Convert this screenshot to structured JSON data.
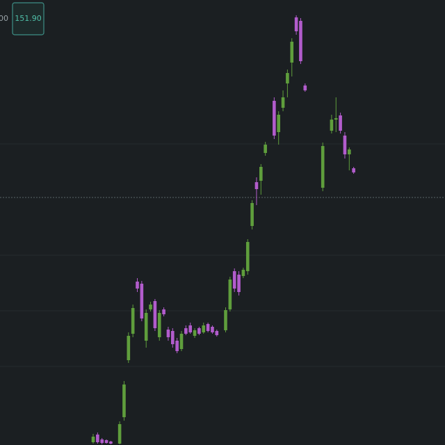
{
  "chart_data": {
    "type": "candlestick",
    "annotations": [
      "00",
      "151.90"
    ],
    "categories": [
      null,
      null,
      null,
      null,
      null,
      null,
      null,
      null,
      null,
      null,
      null,
      null,
      null,
      null,
      null,
      null,
      null,
      null,
      null,
      null,
      null,
      null,
      null,
      null,
      null,
      null,
      null,
      null,
      null,
      null,
      null,
      null,
      null,
      null,
      null,
      null,
      null,
      null,
      null,
      null,
      null,
      null,
      null,
      null,
      null,
      null,
      null,
      null,
      null,
      null,
      null,
      null,
      null,
      null,
      null,
      null,
      null,
      null,
      null,
      null
    ],
    "open": [
      139.72,
      139.94,
      139.8,
      139.78,
      139.74,
      null,
      139.68,
      140.44,
      142.08,
      142.84,
      144.34,
      144.28,
      142.64,
      143.54,
      143.78,
      142.74,
      143.54,
      142.96,
      142.92,
      142.64,
      142.4,
      143.0,
      143.08,
      142.78,
      143.0,
      142.88,
      143.12,
      143.04,
      142.92,
      null,
      142.94,
      143.54,
      144.64,
      144.54,
      144.5,
      144.64,
      145.94,
      147.2,
      147.24,
      148.04,
      null,
      149.54,
      148.64,
      149.34,
      150.04,
      150.64,
      151.94,
      151.84,
      149.98,
      null,
      null,
      null,
      147.04,
      null,
      148.68,
      149.0,
      149.12,
      148.54,
      148.0,
      147.6
    ],
    "high": [
      139.96,
      140.0,
      139.84,
      139.8,
      139.76,
      null,
      140.32,
      141.48,
      142.88,
      143.68,
      144.44,
      144.36,
      143.54,
      143.76,
      143.84,
      143.52,
      143.6,
      143.04,
      143.0,
      142.72,
      142.92,
      143.08,
      143.16,
      143.0,
      143.04,
      143.16,
      143.16,
      143.08,
      142.96,
      null,
      143.6,
      144.48,
      144.72,
      144.64,
      144.74,
      145.56,
      146.68,
      147.34,
      147.72,
      148.36,
      null,
      149.64,
      149.24,
      149.84,
      150.44,
      151.34,
      152.0,
      151.92,
      150.04,
      null,
      null,
      null,
      148.34,
      null,
      149.14,
      149.64,
      149.2,
      148.64,
      148.2,
      147.64
    ],
    "low": [
      139.68,
      139.68,
      139.66,
      139.68,
      139.66,
      null,
      139.66,
      140.34,
      142.0,
      142.74,
      144.04,
      143.2,
      142.44,
      143.48,
      142.92,
      142.64,
      143.34,
      142.64,
      142.44,
      142.28,
      142.34,
      142.8,
      142.84,
      142.72,
      142.8,
      142.84,
      142.88,
      142.84,
      142.76,
      null,
      142.88,
      143.48,
      144.04,
      143.94,
      144.44,
      144.54,
      145.84,
      146.54,
      146.84,
      147.96,
      null,
      148.44,
      148.28,
      149.24,
      149.64,
      150.24,
      151.44,
      150.6,
      149.8,
      null,
      null,
      null,
      146.94,
      null,
      148.6,
      148.64,
      148.6,
      147.88,
      147.54,
      147.44
    ],
    "close": [
      139.88,
      139.72,
      139.7,
      139.7,
      139.68,
      null,
      140.24,
      141.38,
      142.78,
      143.58,
      144.14,
      143.28,
      143.44,
      143.68,
      143.0,
      143.44,
      143.4,
      142.74,
      142.54,
      142.34,
      142.84,
      142.84,
      142.88,
      142.94,
      142.84,
      143.08,
      142.92,
      142.88,
      142.8,
      null,
      143.52,
      144.4,
      144.14,
      144.04,
      144.68,
      145.48,
      146.6,
      147.0,
      147.64,
      148.28,
      null,
      148.54,
      149.14,
      149.64,
      150.34,
      151.24,
      151.54,
      150.68,
      149.84,
      null,
      null,
      null,
      148.24,
      null,
      149.0,
      149.04,
      148.68,
      148.0,
      148.14,
      147.48
    ],
    "up_color": "#5f9e3c",
    "down_color": "#b25ccc",
    "reference_line": 146.76,
    "ylim": [
      139.64,
      152.44
    ]
  }
}
